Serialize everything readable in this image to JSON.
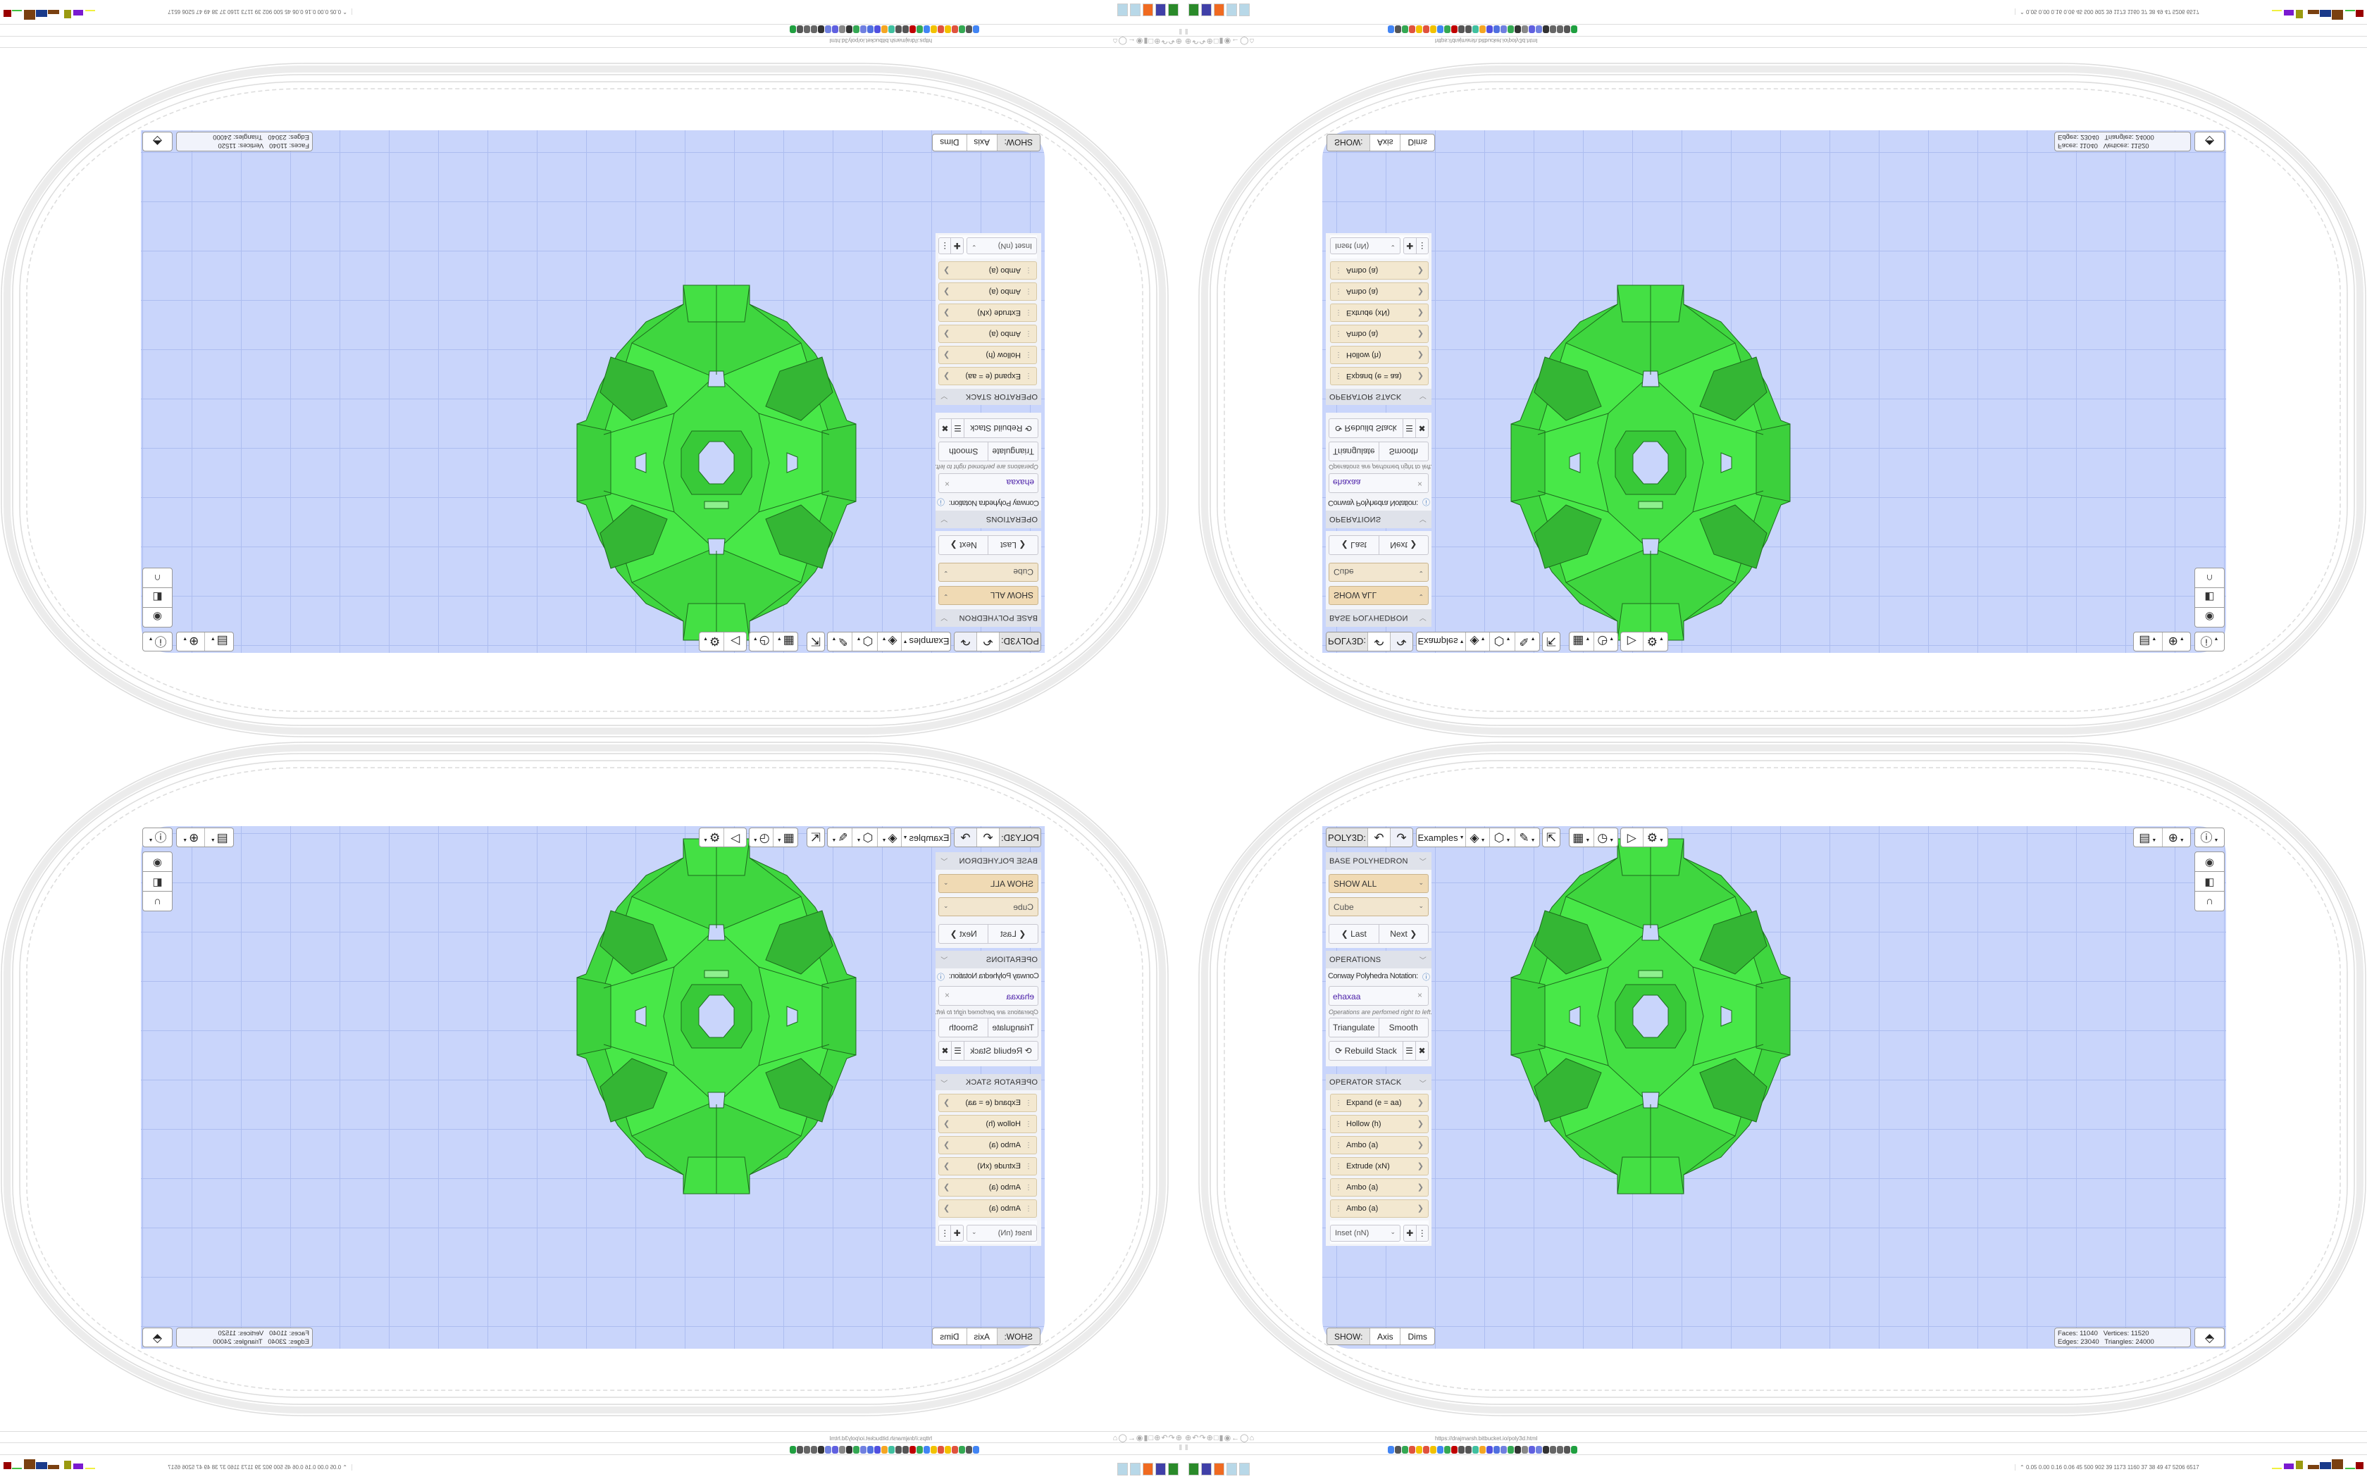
{
  "toolbar": {
    "app_label": "POLY3D:",
    "examples": "Examples",
    "icons": [
      "undo-icon",
      "redo-icon",
      "paint-bucket-icon",
      "cube-view-icon",
      "pencil-icon",
      "export-icon",
      "calendar-icon",
      "clock-icon",
      "play-icon",
      "settings-icon"
    ],
    "right_icons": [
      "calendar-clock-icon",
      "globe-icon",
      "info-icon"
    ],
    "side_icons": [
      "eye-icon",
      "toggle-view-icon",
      "magnet-icon"
    ]
  },
  "base": {
    "header": "BASE POLYHEDRON",
    "category": "SHOW ALL",
    "shape": "Cube",
    "last": "Last",
    "next": "Next"
  },
  "operations": {
    "header": "OPERATIONS",
    "notation_label": "Conway Polyhedra Notation:",
    "notation_value": "ehaxaa",
    "hint": "Operations are perfomed right to left.",
    "triangulate": "Triangulate",
    "smooth": "Smooth",
    "rebuild": "Rebuild Stack"
  },
  "stack": {
    "header": "OPERATOR STACK",
    "items": [
      "Expand (e = aa)",
      "Hollow (h)",
      "Ambo (a)",
      "Extrude (xN)",
      "Ambo (a)",
      "Ambo (a)"
    ],
    "add_select": "Inset (nN)"
  },
  "show": {
    "label": "SHOW:",
    "axis": "Axis",
    "dims": "Dims"
  },
  "stats": {
    "faces_label": "Faces:",
    "faces": "11040",
    "vertices_label": "Vertices:",
    "vertices": "11520",
    "edges_label": "Edges:",
    "edges": "23040",
    "triangles_label": "Triangles:",
    "triangles": "24000"
  },
  "browser": {
    "url": "https://drajmarsh.bitbucket.io/poly3d.html",
    "bookmark_colors": [
      "#4285f4",
      "#555555",
      "#34a853",
      "#e0523e",
      "#f2c200",
      "#e0523e",
      "#f2c200",
      "#4285f4",
      "#34a853",
      "#c00000",
      "#555555",
      "#555555",
      "#40c0a0",
      "#f5a623",
      "#5050e0",
      "#5070e0",
      "#7080e0",
      "#34a853",
      "#333333",
      "#888888",
      "#6060e0",
      "#7080e0",
      "#333333",
      "#666666",
      "#666666",
      "#555555",
      "#20a040"
    ]
  },
  "status": {
    "numbers": "0.05 0.00 0.16 0.06 45 500 902 39 1173 1160 37 38 49 47 5206 6517"
  },
  "colors": {
    "canvas": "#c9d5fb",
    "model": "#44e844",
    "select": "#f0dcb8",
    "stack_item": "#f3e8d0"
  }
}
